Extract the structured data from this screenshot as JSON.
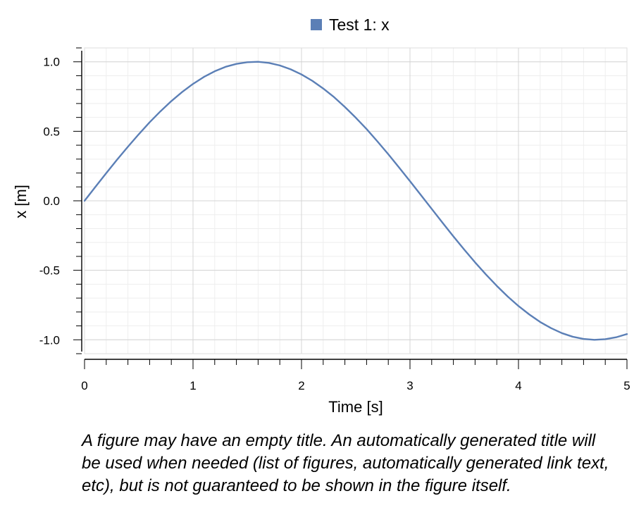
{
  "chart_data": {
    "type": "line",
    "legend": {
      "placement": "top-center",
      "label": "Test 1: x"
    },
    "xlabel": "Time [s]",
    "ylabel": "x [m]",
    "xlim": [
      0,
      5
    ],
    "ylim": [
      -1.1,
      1.1
    ],
    "xticks": [
      0,
      1,
      2,
      3,
      4,
      5
    ],
    "xtick_labels": [
      "0",
      "1",
      "2",
      "3",
      "4",
      "5"
    ],
    "yticks": [
      1.0,
      0.5,
      0.0,
      -0.5,
      -1.0
    ],
    "ytick_labels": [
      "1.0",
      "0.5",
      "0.0",
      "-0.5",
      "-1.0"
    ],
    "grid": true,
    "series": [
      {
        "name": "Test 1: x",
        "color": "#5b7fb6",
        "x": [
          0,
          0.1,
          0.2,
          0.3,
          0.4,
          0.5,
          0.6,
          0.7,
          0.8,
          0.9,
          1.0,
          1.1,
          1.2,
          1.3,
          1.4,
          1.5,
          1.6,
          1.7,
          1.8,
          1.9,
          2.0,
          2.1,
          2.2,
          2.3,
          2.4,
          2.5,
          2.6,
          2.7,
          2.8,
          2.9,
          3.0,
          3.1,
          3.2,
          3.3,
          3.4,
          3.5,
          3.6,
          3.7,
          3.8,
          3.9,
          4.0,
          4.1,
          4.2,
          4.3,
          4.4,
          4.5,
          4.6,
          4.7,
          4.8,
          4.9,
          5.0
        ],
        "y": [
          0,
          0.1,
          0.199,
          0.296,
          0.389,
          0.479,
          0.565,
          0.644,
          0.717,
          0.783,
          0.841,
          0.891,
          0.932,
          0.964,
          0.985,
          0.997,
          1.0,
          0.992,
          0.974,
          0.946,
          0.909,
          0.863,
          0.808,
          0.746,
          0.675,
          0.598,
          0.516,
          0.427,
          0.335,
          0.239,
          0.141,
          0.042,
          -0.058,
          -0.158,
          -0.256,
          -0.351,
          -0.443,
          -0.53,
          -0.612,
          -0.688,
          -0.757,
          -0.818,
          -0.872,
          -0.916,
          -0.952,
          -0.978,
          -0.994,
          -1.0,
          -0.996,
          -0.982,
          -0.959
        ]
      }
    ]
  },
  "caption": "A figure may have an empty title. An automatically generated title will be used when needed (list of figures, automatically generated link text, etc), but is not guaranteed to be shown in the figure itself."
}
